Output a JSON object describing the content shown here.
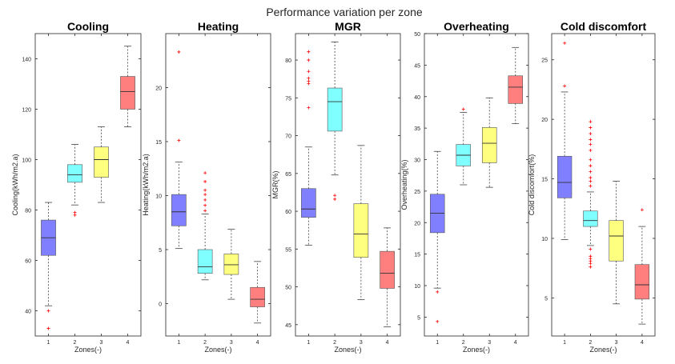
{
  "figure": {
    "title": "Performance variation per zone"
  },
  "colors": [
    "#7f7fff",
    "#7fffff",
    "#ffff7f",
    "#ff7f7f"
  ],
  "chart_data": [
    {
      "type": "box",
      "title": "Cooling",
      "xlabel": "Zones(-)",
      "ylabel": "Cooling(kWh/m2.a)",
      "categories": [
        "1",
        "2",
        "3",
        "4"
      ],
      "ylim": [
        30,
        150
      ],
      "yticks": [
        40,
        60,
        80,
        100,
        120,
        140
      ],
      "boxes": [
        {
          "whisker_low": 42,
          "q1": 62,
          "median": 69,
          "q3": 76,
          "whisker_high": 83,
          "outliers": [
            40,
            33
          ]
        },
        {
          "whisker_low": 82,
          "q1": 91,
          "median": 94,
          "q3": 98,
          "whisker_high": 106,
          "outliers": [
            79,
            78
          ]
        },
        {
          "whisker_low": 83,
          "q1": 93,
          "median": 100,
          "q3": 105,
          "whisker_high": 113,
          "outliers": []
        },
        {
          "whisker_low": 113,
          "q1": 120,
          "median": 127,
          "q3": 133,
          "whisker_high": 145,
          "outliers": []
        }
      ]
    },
    {
      "type": "box",
      "title": "Heating",
      "xlabel": "Zones(-)",
      "ylabel": "Heating(kWh/m2.a)",
      "categories": [
        "1",
        "2",
        "3",
        "4"
      ],
      "ylim": [
        -3,
        25
      ],
      "yticks": [
        0,
        5,
        10,
        15,
        20
      ],
      "boxes": [
        {
          "whisker_low": 5.1,
          "q1": 7.2,
          "median": 8.5,
          "q3": 10.1,
          "whisker_high": 13.1,
          "outliers": [
            15.1,
            23.3
          ]
        },
        {
          "whisker_low": 2.2,
          "q1": 2.8,
          "median": 3.4,
          "q3": 5.0,
          "whisker_high": 8.3,
          "outliers": [
            8.6,
            9.1,
            9.6,
            10.1,
            10.5,
            11.3,
            12.1
          ]
        },
        {
          "whisker_low": 0.4,
          "q1": 2.7,
          "median": 3.6,
          "q3": 4.6,
          "whisker_high": 6.9,
          "outliers": []
        },
        {
          "whisker_low": -1.8,
          "q1": -0.3,
          "median": 0.4,
          "q3": 1.5,
          "whisker_high": 3.9,
          "outliers": []
        }
      ]
    },
    {
      "type": "box",
      "title": "MGR",
      "xlabel": "Zones(-)",
      "ylabel": "MGR(%)",
      "categories": [
        "1",
        "2",
        "3",
        "4"
      ],
      "ylim": [
        43.5,
        83.5
      ],
      "yticks": [
        45,
        50,
        55,
        60,
        65,
        70,
        75,
        80
      ],
      "boxes": [
        {
          "whisker_low": 55.5,
          "q1": 59.2,
          "median": 60.3,
          "q3": 63.0,
          "whisker_high": 68.5,
          "outliers": [
            73.7,
            76.9,
            77.2,
            77.6,
            78.5,
            80.0,
            81.1
          ]
        },
        {
          "whisker_low": 64.8,
          "q1": 70.6,
          "median": 74.5,
          "q3": 76.3,
          "whisker_high": 82.4,
          "outliers": [
            62.1,
            61.6
          ]
        },
        {
          "whisker_low": 48.3,
          "q1": 53.9,
          "median": 57.0,
          "q3": 61.0,
          "whisker_high": 68.7,
          "outliers": []
        },
        {
          "whisker_low": 44.7,
          "q1": 49.8,
          "median": 51.8,
          "q3": 54.7,
          "whisker_high": 57.8,
          "outliers": []
        }
      ]
    },
    {
      "type": "box",
      "title": "Overheating",
      "xlabel": "Zones(-)",
      "ylabel": "Overheating(%)",
      "categories": [
        "1",
        "2",
        "3",
        "4"
      ],
      "ylim": [
        2,
        50
      ],
      "yticks": [
        5,
        10,
        15,
        20,
        25,
        30,
        35,
        40,
        45,
        50
      ],
      "boxes": [
        {
          "whisker_low": 9.6,
          "q1": 18.4,
          "median": 21.5,
          "q3": 24.5,
          "whisker_high": 31.3,
          "outliers": [
            9.0,
            4.3
          ]
        },
        {
          "whisker_low": 26.0,
          "q1": 29.0,
          "median": 30.7,
          "q3": 32.4,
          "whisker_high": 37.5,
          "outliers": [
            38.0
          ]
        },
        {
          "whisker_low": 25.6,
          "q1": 29.5,
          "median": 32.6,
          "q3": 35.1,
          "whisker_high": 39.8,
          "outliers": []
        },
        {
          "whisker_low": 35.7,
          "q1": 38.9,
          "median": 41.5,
          "q3": 43.3,
          "whisker_high": 47.8,
          "outliers": []
        }
      ]
    },
    {
      "type": "box",
      "title": "Cold discomfort",
      "xlabel": "Zones(-)",
      "ylabel": "Cold discomfort(%)",
      "categories": [
        "1",
        "2",
        "3",
        "4"
      ],
      "ylim": [
        1.8,
        27.2
      ],
      "yticks": [
        5,
        10,
        15,
        20,
        25
      ],
      "boxes": [
        {
          "whisker_low": 9.9,
          "q1": 13.4,
          "median": 14.7,
          "q3": 16.9,
          "whisker_high": 22.3,
          "outliers": [
            22.8,
            26.4
          ]
        },
        {
          "whisker_low": 9.4,
          "q1": 11.0,
          "median": 11.5,
          "q3": 12.3,
          "whisker_high": 13.9,
          "outliers": [
            7.6,
            7.9,
            8.1,
            8.3,
            8.5,
            9.1,
            14.4,
            14.8,
            15.1,
            15.6,
            16.1,
            16.6,
            17.4,
            17.9,
            18.3,
            18.8,
            19.3,
            19.8
          ]
        },
        {
          "whisker_low": 4.5,
          "q1": 8.1,
          "median": 10.2,
          "q3": 11.5,
          "whisker_high": 14.8,
          "outliers": []
        },
        {
          "whisker_low": 2.8,
          "q1": 4.9,
          "median": 6.1,
          "q3": 7.8,
          "whisker_high": 11.0,
          "outliers": [
            12.4
          ]
        }
      ]
    }
  ]
}
